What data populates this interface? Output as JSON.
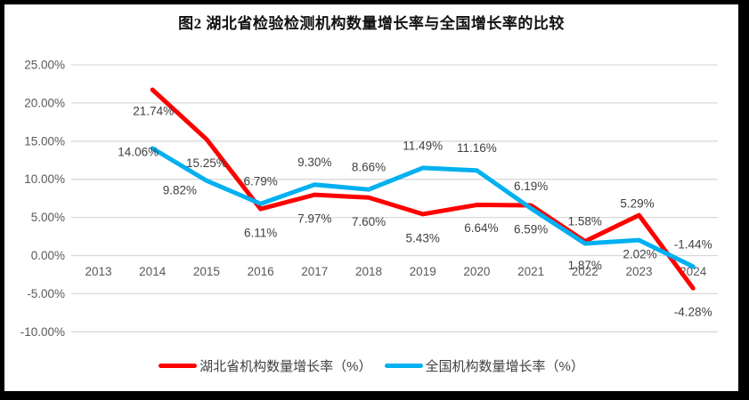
{
  "chart_data": {
    "type": "line",
    "title": "图2  湖北省检验检测机构数量增长率与全国增长率的比较",
    "categories": [
      "2013",
      "2014",
      "2015",
      "2016",
      "2017",
      "2018",
      "2019",
      "2020",
      "2021",
      "2022",
      "2023",
      "2024"
    ],
    "series": [
      {
        "name": "湖北省机构数量增长率（%）",
        "color": "#FE0000",
        "values": [
          null,
          21.74,
          15.25,
          6.11,
          7.97,
          7.6,
          5.43,
          6.64,
          6.59,
          1.87,
          5.29,
          -4.28
        ]
      },
      {
        "name": "全国机构数量增长率（%）",
        "color": "#00B0F0",
        "values": [
          null,
          14.06,
          9.82,
          6.79,
          9.3,
          8.66,
          11.49,
          11.16,
          6.19,
          1.58,
          2.02,
          -1.44
        ]
      }
    ],
    "yticks": [
      25,
      20,
      15,
      10,
      5,
      0,
      -5,
      -10
    ],
    "ylim": [
      -10,
      25
    ],
    "ytick_label_format": "0.00%",
    "data_label_format": "0.00%",
    "grid": true,
    "legend_position": "bottom",
    "xlabel": "",
    "ylabel": ""
  },
  "colors": {
    "gridline": "#D9D9D9",
    "axis_text": "#595959",
    "data_label_text": "#404040"
  }
}
